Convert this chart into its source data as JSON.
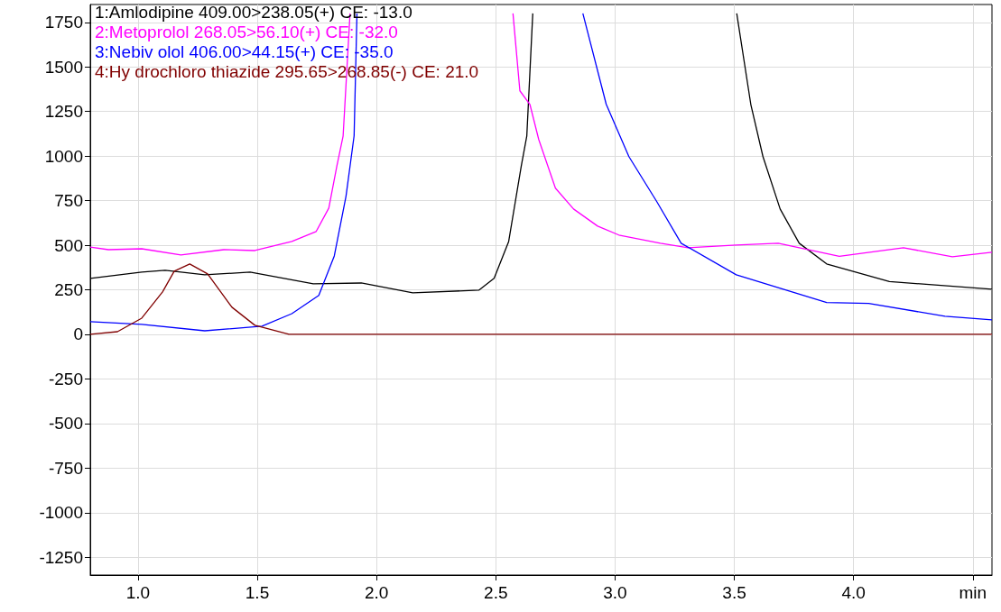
{
  "chart_data": {
    "type": "line",
    "legend": "top left",
    "grid": true,
    "marker": "none",
    "line_style": "solid",
    "xlim": [
      0.8,
      4.58
    ],
    "ylim": [
      -1350,
      1850
    ],
    "xticks": [
      {
        "value": 1,
        "label": "1.0"
      },
      {
        "value": 1.5,
        "label": "1.5"
      },
      {
        "value": 2,
        "label": "2.0"
      },
      {
        "value": 2.5,
        "label": "2.5"
      },
      {
        "value": 3,
        "label": "3.0"
      },
      {
        "value": 3.5,
        "label": "3.5"
      },
      {
        "value": 4,
        "label": "4.0"
      },
      {
        "value": 4.5,
        "label": "min"
      }
    ],
    "yticks": [
      -1250,
      -1000,
      -750,
      -500,
      -250,
      0,
      250,
      500,
      750,
      1000,
      1250,
      1500,
      1750
    ],
    "series": [
      {
        "name": "1:Amlodipine 409.00>238.05(+) CE: -13.0",
        "color": "#000000",
        "x": [
          0.8,
          1.016,
          1.114,
          1.28,
          1.47,
          1.735,
          1.936,
          2.152,
          2.429,
          2.493,
          2.554,
          2.607,
          2.63,
          2.655,
          3.05,
          3.51,
          3.569,
          3.62,
          3.692,
          3.772,
          3.887,
          4.15,
          4.58
        ],
        "values": [
          314,
          349,
          359,
          334,
          349,
          283,
          288,
          233,
          248,
          314,
          521,
          946,
          1113,
          1800,
          null,
          1800,
          1290,
          997,
          703,
          511,
          395,
          296,
          253
        ]
      },
      {
        "name": "2:Metoprolol 268.05>56.10(+) CE: -32.0",
        "color": "#ff00ff",
        "x": [
          0.8,
          0.876,
          1.016,
          1.18,
          1.36,
          1.49,
          1.645,
          1.747,
          1.8,
          1.834,
          1.86,
          1.889,
          2.2,
          2.572,
          2.601,
          2.643,
          2.68,
          2.75,
          2.826,
          2.927,
          3.016,
          3.19,
          3.306,
          3.508,
          3.684,
          3.94,
          4.209,
          4.414,
          4.58
        ],
        "values": [
          490,
          475,
          480,
          445,
          475,
          470,
          521,
          577,
          708,
          946,
          1113,
          1800,
          null,
          1800,
          1366,
          1290,
          1093,
          820,
          703,
          607,
          557,
          511,
          486,
          501,
          511,
          438,
          486,
          435,
          460
        ]
      },
      {
        "name": "3:Nebiv olol 406.00>44.15(+) CE: -35.0",
        "color": "#0000ff",
        "x": [
          0.8,
          1.016,
          1.28,
          1.52,
          1.645,
          1.758,
          1.823,
          1.872,
          1.906,
          1.918,
          2.4,
          2.865,
          2.963,
          3.058,
          3.175,
          3.277,
          3.508,
          3.887,
          4.063,
          4.383,
          4.58
        ],
        "values": [
          71,
          56,
          20,
          46,
          116,
          218,
          440,
          774,
          1113,
          1800,
          null,
          1800,
          1290,
          997,
          744,
          511,
          334,
          179,
          174,
          101,
          81
        ]
      },
      {
        "name": "4:Hy drochloro thiazide 295.65>268.85(-) CE: 21.0",
        "color": "#800000",
        "x": [
          0.8,
          0.914,
          1.016,
          1.103,
          1.152,
          1.217,
          1.292,
          1.394,
          1.49,
          1.633,
          4.58
        ],
        "values": [
          0,
          15,
          91,
          238,
          354,
          395,
          339,
          152,
          51,
          0,
          0
        ]
      }
    ]
  }
}
